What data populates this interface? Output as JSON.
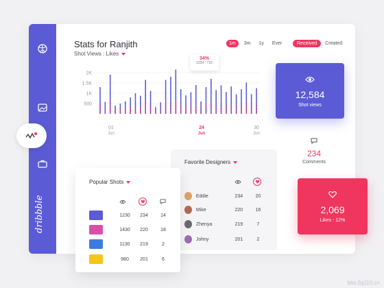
{
  "header": {
    "title": "Stats for Ranjith",
    "subtitle": "Shot Views : Likes"
  },
  "time_ranges": [
    "1m",
    "3m",
    "1y",
    "Ever"
  ],
  "active_range": "1m",
  "toggle": {
    "received": "Received",
    "created": "Created"
  },
  "tooltip": {
    "percent": "34%",
    "detail": "2234 : 716"
  },
  "chart_data": {
    "type": "bar",
    "y_ticks": [
      "2K",
      "1.5K",
      "1K",
      "500"
    ],
    "x_ticks": [
      {
        "day": "01",
        "month": "Jun"
      },
      {
        "day": "24",
        "month": "Jun"
      },
      {
        "day": "30",
        "month": "Jun"
      }
    ],
    "ylim": [
      0,
      2200
    ],
    "series": [
      {
        "name": "Shot Views",
        "values": [
          1300,
          580,
          1900,
          400,
          500,
          610,
          800,
          1000,
          880,
          1650,
          1120,
          330,
          560,
          1650,
          1800,
          2150,
          1200,
          900,
          1050,
          1400,
          600,
          1300,
          1700,
          1150,
          1380,
          1060,
          1330,
          950,
          1200,
          1520,
          960,
          1250
        ]
      },
      {
        "name": "Likes",
        "values": [
          400,
          300,
          560,
          220,
          260,
          280,
          320,
          360,
          340,
          520,
          430,
          200,
          250,
          520,
          560,
          640,
          420,
          350,
          380,
          460,
          260,
          400,
          500,
          410,
          440,
          380,
          420,
          360,
          400,
          480,
          360,
          420
        ]
      }
    ]
  },
  "views_card": {
    "icon": "eye-icon",
    "value": "12,584",
    "label": "Shot views"
  },
  "comments": {
    "icon": "comment-icon",
    "value": "234",
    "label": "Comments"
  },
  "likes_card": {
    "icon": "heart-icon",
    "value": "2,069",
    "label": "Likes - 12%"
  },
  "favorite_designers": {
    "title": "Favorite Designers",
    "rows": [
      {
        "name": "Eddie",
        "views": "234",
        "likes": "20",
        "color": "#e0a26a"
      },
      {
        "name": "Mike",
        "views": "220",
        "likes": "16",
        "color": "#b46a55"
      },
      {
        "name": "Zhenya",
        "views": "219",
        "likes": "7",
        "color": "#6b6b6b"
      },
      {
        "name": "Johny",
        "views": "201",
        "likes": "2",
        "color": "#9b6fb3"
      }
    ]
  },
  "popular_shots": {
    "title": "Popular Shots",
    "rows": [
      {
        "views": "1230",
        "likes": "234",
        "comments": "14",
        "color": "#5b5bd6"
      },
      {
        "views": "1430",
        "likes": "220",
        "comments": "18",
        "color": "#d84fa8"
      },
      {
        "views": "1130",
        "likes": "219",
        "comments": "2",
        "color": "#3a7be0"
      },
      {
        "views": "980",
        "likes": "201",
        "comments": "6",
        "color": "#f5c518"
      }
    ]
  },
  "brand": "dribbble",
  "watermark": "bbs.5g110.cn",
  "colors": {
    "accent": "#f0365f",
    "primary": "#5b5bd6"
  }
}
